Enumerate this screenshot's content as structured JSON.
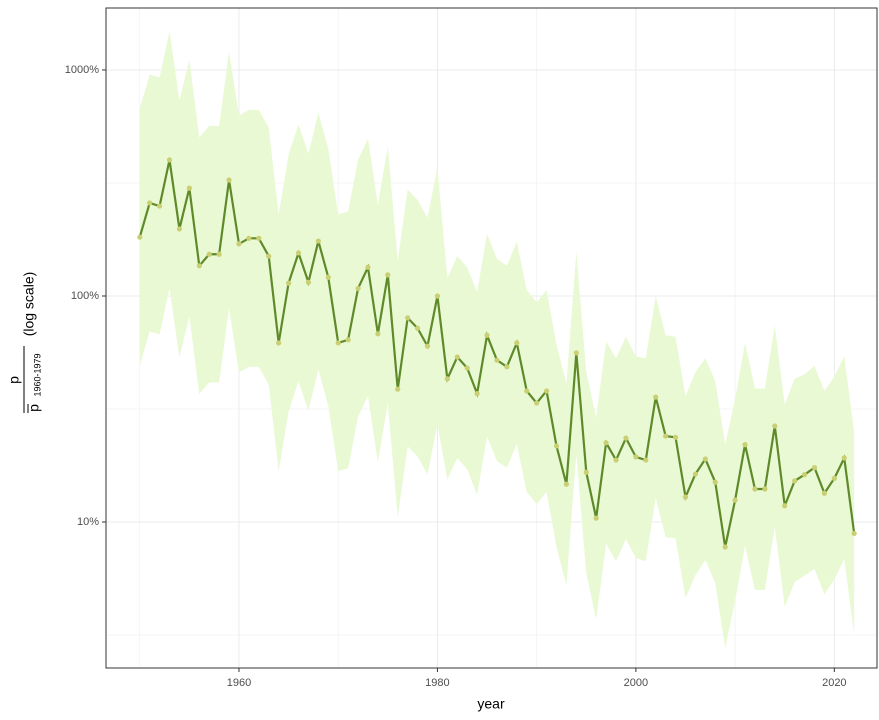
{
  "chart_data": {
    "type": "line",
    "xlabel": "year",
    "ylabel": {
      "numerator": "p",
      "denominator": "p",
      "denominator_subscript": "1960-1979",
      "note": "(log scale)"
    },
    "x": [
      1950,
      1951,
      1952,
      1953,
      1954,
      1955,
      1956,
      1957,
      1958,
      1959,
      1960,
      1961,
      1962,
      1963,
      1964,
      1965,
      1966,
      1967,
      1968,
      1969,
      1970,
      1971,
      1972,
      1973,
      1974,
      1975,
      1976,
      1977,
      1978,
      1979,
      1980,
      1981,
      1982,
      1983,
      1984,
      1985,
      1986,
      1987,
      1988,
      1989,
      1990,
      1991,
      1992,
      1993,
      1994,
      1995,
      1996,
      1997,
      1998,
      1999,
      2000,
      2001,
      2002,
      2003,
      2004,
      2005,
      2006,
      2007,
      2008,
      2009,
      2010,
      2011,
      2012,
      2013,
      2014,
      2015,
      2016,
      2017,
      2018,
      2019,
      2020,
      2021,
      2022
    ],
    "values": [
      182,
      258,
      250,
      400,
      198,
      300,
      136,
      153,
      153,
      326,
      170,
      180,
      180,
      150,
      62,
      114,
      155,
      115,
      175,
      121,
      62,
      64,
      108,
      134,
      68,
      124,
      38.7,
      80,
      72,
      60,
      100,
      43,
      53.7,
      48,
      37,
      67,
      52,
      48.6,
      62,
      38,
      33.6,
      38,
      21.7,
      14.7,
      56,
      16.6,
      10.4,
      22.4,
      18.8,
      23.5,
      19.4,
      18.8,
      35.7,
      24,
      23.7,
      12.9,
      16.3,
      19,
      15,
      7.75,
      12.5,
      22,
      14,
      14,
      26.6,
      11.8,
      15.2,
      16.2,
      17.4,
      13.4,
      15.6,
      19.2,
      8.9
    ],
    "upper": [
      673,
      955,
      925,
      1480,
      733,
      1110,
      503,
      566,
      566,
      1206,
      629,
      666,
      666,
      555,
      229,
      422,
      574,
      426,
      648,
      448,
      229,
      237,
      400,
      496,
      252,
      459,
      143,
      296,
      266,
      222,
      370,
      120,
      150,
      134,
      104,
      188,
      146,
      136,
      174,
      106,
      94,
      106,
      61,
      41,
      157,
      46,
      29,
      63,
      53,
      66,
      54,
      53,
      100,
      67,
      66,
      36,
      46,
      53,
      42,
      22,
      35,
      62,
      39,
      39,
      74,
      33,
      43,
      45,
      49,
      38,
      44,
      54,
      25
    ],
    "lower": [
      49.2,
      69.7,
      67.6,
      108,
      53.5,
      81.1,
      36.8,
      41.4,
      41.4,
      88.1,
      45.9,
      48.6,
      48.6,
      40.5,
      16.8,
      30.8,
      41.9,
      31.1,
      47.3,
      32.7,
      16.8,
      17.3,
      29.2,
      36.2,
      18.4,
      33.5,
      10.5,
      21.6,
      19.5,
      16.2,
      27,
      15.4,
      19.2,
      17.1,
      13.2,
      23.9,
      18.6,
      17.4,
      22.1,
      13.6,
      12,
      13.6,
      7.75,
      5.25,
      20,
      5.93,
      3.71,
      8,
      6.71,
      8.39,
      6.93,
      6.71,
      12.8,
      8.57,
      8.46,
      4.61,
      5.82,
      6.79,
      5.36,
      2.77,
      4.46,
      7.86,
      5,
      5,
      9.5,
      4.21,
      5.43,
      5.79,
      6.21,
      4.79,
      5.57,
      6.86,
      3.18
    ],
    "line_color": "#5f8a2a",
    "point_color": "#c9cf72",
    "band_color": "#e9f9d3",
    "xlim": [
      1946.6,
      2024.3
    ],
    "xticks": [
      1960,
      1980,
      2000,
      2020
    ],
    "x_minor_grid": [
      1950,
      1970,
      1990,
      2010
    ],
    "ylim": [
      2.26,
      1880
    ],
    "yscale": "log",
    "yticks": [
      {
        "value": 10,
        "label": "10%"
      },
      {
        "value": 100,
        "label": "100%"
      },
      {
        "value": 1000,
        "label": "1000%"
      }
    ],
    "y_minor_grid": [
      3.162,
      31.62,
      316.2
    ],
    "grid": true
  }
}
